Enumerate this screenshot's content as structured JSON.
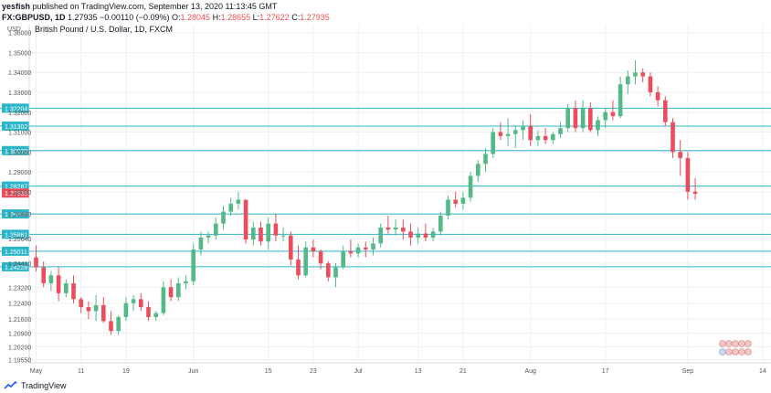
{
  "header": {
    "user": "yesfish",
    "published": " published on TradingView.com, September 13, 2020 11:13:45 GMT",
    "symbol": "FX:GBPUSD, 1D",
    "last": "1.27935",
    "change": "−0.00110 (−0.09%)",
    "o_label": "O:",
    "o_value": "1.28045",
    "h_label": "H:",
    "h_value": "1.28655",
    "l_label": "L:",
    "l_value": "1.27622",
    "c_label": "C:",
    "c_value": "1.27935"
  },
  "footer": {
    "brand": "TradingView"
  },
  "colors": {
    "up": "#53b987",
    "down": "#eb4d5c",
    "level": "#2bb5c9",
    "grid": "#eef0f3",
    "axis_text": "#555555"
  },
  "chart_data": {
    "type": "candlestick",
    "title": "British Pound / U.S. Dollar, 1D, FXCM",
    "currency": "USD",
    "ylim": [
      1.194,
      1.364
    ],
    "y_ticks": [
      "1.36000",
      "1.35000",
      "1.34000",
      "1.33000",
      "1.32000",
      "1.31000",
      "1.30000",
      "1.29000",
      "1.28000",
      "1.26880",
      "1.25640",
      "1.24410",
      "1.23200",
      "1.22400",
      "1.21600",
      "1.20900",
      "1.20200",
      "1.19550"
    ],
    "x_labels": [
      {
        "label": "May",
        "index": 0
      },
      {
        "label": "11",
        "index": 6
      },
      {
        "label": "19",
        "index": 12
      },
      {
        "label": "Jun",
        "index": 21
      },
      {
        "label": "15",
        "index": 31
      },
      {
        "label": "23",
        "index": 37
      },
      {
        "label": "Jul",
        "index": 43
      },
      {
        "label": "13",
        "index": 51
      },
      {
        "label": "21",
        "index": 57
      },
      {
        "label": "Aug",
        "index": 66
      },
      {
        "label": "17",
        "index": 76
      },
      {
        "label": "Sep",
        "index": 87
      },
      {
        "label": "14",
        "index": 97
      }
    ],
    "levels": [
      {
        "value": 1.32204,
        "label": "1.32204"
      },
      {
        "value": 1.31302,
        "label": "1.31302"
      },
      {
        "value": 1.3007,
        "label": "1.30070"
      },
      {
        "value": 1.28287,
        "label": "1.28287"
      },
      {
        "value": 1.26885,
        "label": "1.26885"
      },
      {
        "value": 1.25861,
        "label": "1.25861"
      },
      {
        "value": 1.25011,
        "label": "1.25011"
      },
      {
        "value": 1.24228,
        "label": "1.24228"
      }
    ],
    "last_price": {
      "value": 1.27935,
      "label": "1.27935"
    },
    "candles": [
      [
        1.247,
        1.253,
        1.24,
        1.242
      ],
      [
        1.242,
        1.245,
        1.232,
        1.234
      ],
      [
        1.234,
        1.24,
        1.23,
        1.238
      ],
      [
        1.238,
        1.242,
        1.225,
        1.229
      ],
      [
        1.229,
        1.236,
        1.227,
        1.234
      ],
      [
        1.234,
        1.238,
        1.224,
        1.226
      ],
      [
        1.226,
        1.227,
        1.219,
        1.222
      ],
      [
        1.222,
        1.225,
        1.216,
        1.22
      ],
      [
        1.22,
        1.228,
        1.215,
        1.223
      ],
      [
        1.223,
        1.227,
        1.214,
        1.215
      ],
      [
        1.215,
        1.22,
        1.208,
        1.21
      ],
      [
        1.21,
        1.218,
        1.208,
        1.217
      ],
      [
        1.217,
        1.227,
        1.215,
        1.224
      ],
      [
        1.224,
        1.228,
        1.22,
        1.226
      ],
      [
        1.226,
        1.229,
        1.22,
        1.222
      ],
      [
        1.222,
        1.225,
        1.215,
        1.217
      ],
      [
        1.217,
        1.22,
        1.215,
        1.219
      ],
      [
        1.219,
        1.235,
        1.218,
        1.232
      ],
      [
        1.232,
        1.236,
        1.225,
        1.227
      ],
      [
        1.227,
        1.237,
        1.225,
        1.234
      ],
      [
        1.234,
        1.238,
        1.231,
        1.235
      ],
      [
        1.235,
        1.254,
        1.233,
        1.251
      ],
      [
        1.251,
        1.26,
        1.248,
        1.257
      ],
      [
        1.257,
        1.26,
        1.254,
        1.258
      ],
      [
        1.258,
        1.267,
        1.256,
        1.264
      ],
      [
        1.264,
        1.273,
        1.261,
        1.27
      ],
      [
        1.27,
        1.277,
        1.268,
        1.274
      ],
      [
        1.274,
        1.28,
        1.271,
        1.276
      ],
      [
        1.276,
        1.276,
        1.254,
        1.256
      ],
      [
        1.256,
        1.265,
        1.253,
        1.262
      ],
      [
        1.262,
        1.265,
        1.253,
        1.255
      ],
      [
        1.255,
        1.267,
        1.251,
        1.264
      ],
      [
        1.264,
        1.269,
        1.255,
        1.258
      ],
      [
        1.258,
        1.262,
        1.255,
        1.258
      ],
      [
        1.258,
        1.26,
        1.243,
        1.246
      ],
      [
        1.246,
        1.253,
        1.236,
        1.238
      ],
      [
        1.238,
        1.255,
        1.237,
        1.252
      ],
      [
        1.252,
        1.256,
        1.247,
        1.25
      ],
      [
        1.25,
        1.251,
        1.241,
        1.244
      ],
      [
        1.244,
        1.245,
        1.235,
        1.237
      ],
      [
        1.237,
        1.244,
        1.232,
        1.242
      ],
      [
        1.242,
        1.253,
        1.241,
        1.25
      ],
      [
        1.25,
        1.256,
        1.247,
        1.249
      ],
      [
        1.249,
        1.254,
        1.247,
        1.252
      ],
      [
        1.252,
        1.255,
        1.247,
        1.251
      ],
      [
        1.251,
        1.257,
        1.248,
        1.254
      ],
      [
        1.254,
        1.264,
        1.252,
        1.262
      ],
      [
        1.262,
        1.268,
        1.259,
        1.261
      ],
      [
        1.261,
        1.266,
        1.258,
        1.262
      ],
      [
        1.262,
        1.266,
        1.256,
        1.26
      ],
      [
        1.26,
        1.264,
        1.253,
        1.257
      ],
      [
        1.257,
        1.262,
        1.254,
        1.259
      ],
      [
        1.259,
        1.264,
        1.255,
        1.257
      ],
      [
        1.257,
        1.262,
        1.255,
        1.26
      ],
      [
        1.26,
        1.27,
        1.258,
        1.268
      ],
      [
        1.268,
        1.278,
        1.266,
        1.276
      ],
      [
        1.276,
        1.28,
        1.272,
        1.274
      ],
      [
        1.274,
        1.28,
        1.271,
        1.277
      ],
      [
        1.277,
        1.29,
        1.275,
        1.288
      ],
      [
        1.288,
        1.296,
        1.285,
        1.294
      ],
      [
        1.294,
        1.302,
        1.29,
        1.299
      ],
      [
        1.299,
        1.312,
        1.297,
        1.31
      ],
      [
        1.31,
        1.315,
        1.306,
        1.308
      ],
      [
        1.308,
        1.317,
        1.303,
        1.309
      ],
      [
        1.309,
        1.313,
        1.302,
        1.311
      ],
      [
        1.311,
        1.316,
        1.306,
        1.313
      ],
      [
        1.313,
        1.319,
        1.303,
        1.306
      ],
      [
        1.306,
        1.311,
        1.303,
        1.308
      ],
      [
        1.308,
        1.312,
        1.304,
        1.306
      ],
      [
        1.306,
        1.31,
        1.304,
        1.309
      ],
      [
        1.309,
        1.315,
        1.307,
        1.312
      ],
      [
        1.312,
        1.324,
        1.31,
        1.322
      ],
      [
        1.322,
        1.326,
        1.31,
        1.312
      ],
      [
        1.312,
        1.326,
        1.31,
        1.322
      ],
      [
        1.322,
        1.325,
        1.31,
        1.311
      ],
      [
        1.311,
        1.318,
        1.308,
        1.316
      ],
      [
        1.316,
        1.322,
        1.312,
        1.32
      ],
      [
        1.32,
        1.326,
        1.316,
        1.318
      ],
      [
        1.318,
        1.338,
        1.317,
        1.334
      ],
      [
        1.334,
        1.341,
        1.329,
        1.338
      ],
      [
        1.338,
        1.346,
        1.334,
        1.34
      ],
      [
        1.34,
        1.342,
        1.335,
        1.338
      ],
      [
        1.338,
        1.34,
        1.328,
        1.33
      ],
      [
        1.33,
        1.333,
        1.323,
        1.326
      ],
      [
        1.326,
        1.328,
        1.313,
        1.315
      ],
      [
        1.315,
        1.317,
        1.297,
        1.3
      ],
      [
        1.3,
        1.306,
        1.288,
        1.297
      ],
      [
        1.297,
        1.3,
        1.276,
        1.28
      ],
      [
        1.28,
        1.287,
        1.276,
        1.279
      ]
    ]
  }
}
